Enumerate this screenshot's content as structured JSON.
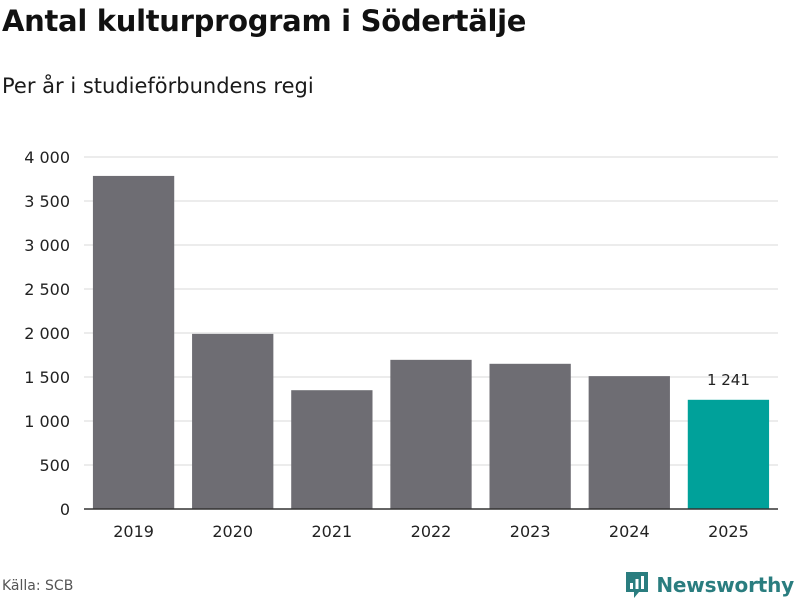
{
  "chart_data": {
    "type": "bar",
    "title": "Antal kulturprogram i Södertälje",
    "subtitle": "Per år i studieförbundens regi",
    "categories": [
      "2019",
      "2020",
      "2021",
      "2022",
      "2023",
      "2024",
      "2025"
    ],
    "values": [
      3785,
      1990,
      1350,
      1695,
      1650,
      1510,
      1241
    ],
    "ylim": [
      0,
      4000
    ],
    "yticks": [
      0,
      500,
      1000,
      1500,
      2000,
      2500,
      3000,
      3500,
      4000
    ],
    "ytick_labels": [
      "0",
      "500",
      "1 000",
      "1 500",
      "2 000",
      "2 500",
      "3 000",
      "3 500",
      "4 000"
    ],
    "highlight_index": 6,
    "data_labels": [
      {
        "index": 6,
        "text": "1 241"
      }
    ],
    "grid": true,
    "colors": {
      "bar": "#6e6d73",
      "highlight": "#00a19a",
      "grid": "#d9d9d9",
      "axis": "#333333"
    }
  },
  "footer": {
    "source": "Källa: SCB",
    "brand": "Newsworthy"
  },
  "brand_colors": {
    "primary": "#2a7d7f",
    "light": "#5fb3b3"
  }
}
